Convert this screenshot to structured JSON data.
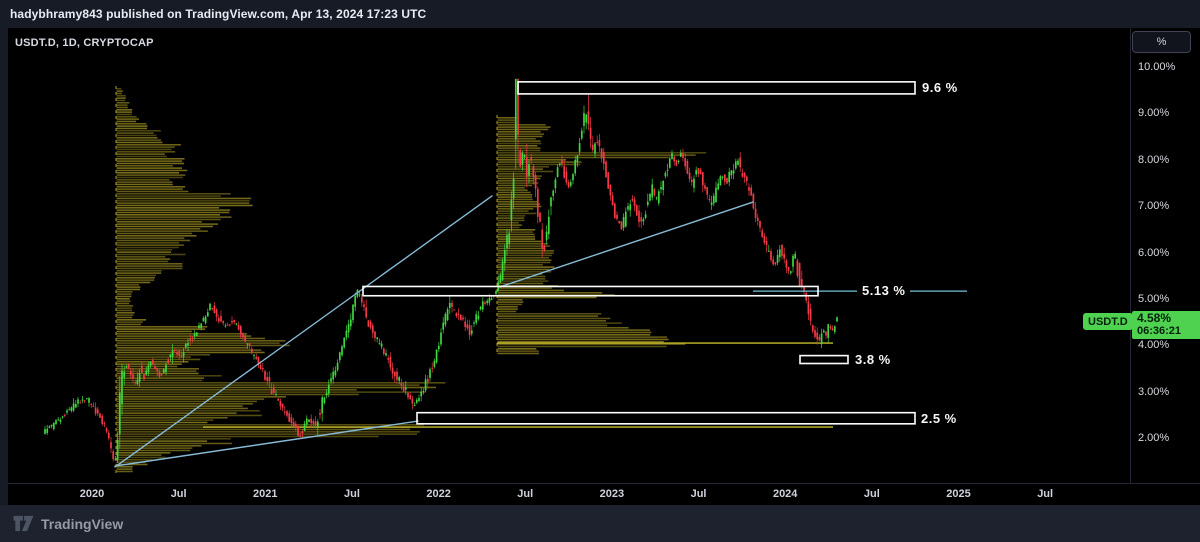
{
  "header": {
    "text": "hadybhramy843 published on TradingView.com, Apr 13, 2024 17:23 UTC"
  },
  "legend": {
    "symbol_line": "USDT.D, 1D, CRYPTOCAP"
  },
  "axis_button": {
    "label": "%"
  },
  "price_badge": {
    "symbol": "USDT.D",
    "value": "4.58%",
    "countdown": "06:36:21"
  },
  "footer": {
    "brand": "TradingView"
  },
  "colors": {
    "up": "#3fd63f",
    "down": "#f43a47",
    "profile": "#a89a24",
    "profile_line": "#c8bc2b",
    "trendline": "#87bad6",
    "ray_cyan": "#74c3da",
    "level_yellow": "#c8bc2b",
    "box_white": "#ffffff",
    "badge_green": "#4fd24f"
  },
  "chart_data": {
    "type": "candlestick",
    "title": "USDT.D, 1D, CRYPTOCAP",
    "symbol": "USDT.D",
    "interval": "1D",
    "exchange": "CRYPTOCAP",
    "unit": "%",
    "current_price": 4.58,
    "y_ticks": [
      "10.00%",
      "9.00%",
      "8.00%",
      "7.00%",
      "6.00%",
      "5.00%",
      "4.00%",
      "3.00%",
      "2.00%"
    ],
    "x_labels": [
      "2020",
      "Jul",
      "2021",
      "Jul",
      "2022",
      "Jul",
      "2023",
      "Jul",
      "2024",
      "Jul",
      "2025",
      "Jul"
    ],
    "ylim": [
      1.2,
      10.6
    ],
    "grid": false,
    "legend_position": "top-left",
    "price_path": [
      [
        37,
        2.1
      ],
      [
        47,
        2.3
      ],
      [
        57,
        2.5
      ],
      [
        67,
        2.7
      ],
      [
        80,
        2.85
      ],
      [
        87,
        2.7
      ],
      [
        94,
        2.45
      ],
      [
        100,
        2.2
      ],
      [
        105,
        1.8
      ],
      [
        109,
        1.45
      ],
      [
        112,
        2.2
      ],
      [
        115,
        3.2
      ],
      [
        119,
        3.6
      ],
      [
        124,
        3.4
      ],
      [
        129,
        3.1
      ],
      [
        134,
        3.5
      ],
      [
        139,
        3.3
      ],
      [
        144,
        3.7
      ],
      [
        150,
        3.5
      ],
      [
        155,
        3.3
      ],
      [
        160,
        3.6
      ],
      [
        167,
        3.9
      ],
      [
        174,
        3.7
      ],
      [
        182,
        4.1
      ],
      [
        190,
        4.3
      ],
      [
        197,
        4.5
      ],
      [
        205,
        4.85
      ],
      [
        212,
        4.6
      ],
      [
        220,
        4.4
      ],
      [
        227,
        4.55
      ],
      [
        234,
        4.3
      ],
      [
        242,
        4.0
      ],
      [
        250,
        3.7
      ],
      [
        257,
        3.4
      ],
      [
        264,
        3.1
      ],
      [
        272,
        2.8
      ],
      [
        280,
        2.5
      ],
      [
        287,
        2.3
      ],
      [
        294,
        2.1
      ],
      [
        302,
        2.4
      ],
      [
        310,
        2.3
      ],
      [
        317,
        2.8
      ],
      [
        324,
        3.2
      ],
      [
        332,
        3.7
      ],
      [
        340,
        4.2
      ],
      [
        347,
        4.8
      ],
      [
        352,
        5.15
      ],
      [
        357,
        4.9
      ],
      [
        362,
        4.5
      ],
      [
        369,
        4.2
      ],
      [
        377,
        3.9
      ],
      [
        384,
        3.6
      ],
      [
        392,
        3.3
      ],
      [
        400,
        3.0
      ],
      [
        407,
        2.7
      ],
      [
        414,
        2.9
      ],
      [
        422,
        3.3
      ],
      [
        430,
        3.8
      ],
      [
        437,
        4.4
      ],
      [
        444,
        4.9
      ],
      [
        450,
        4.7
      ],
      [
        457,
        4.5
      ],
      [
        464,
        4.3
      ],
      [
        470,
        4.6
      ],
      [
        477,
        4.9
      ],
      [
        484,
        5.0
      ],
      [
        489,
        5.1
      ],
      [
        494,
        5.4
      ],
      [
        499,
        6.0
      ],
      [
        504,
        6.6
      ],
      [
        507,
        7.3
      ],
      [
        510,
        9.45
      ],
      [
        512,
        8.2
      ],
      [
        515,
        7.9
      ],
      [
        518,
        8.3
      ],
      [
        521,
        7.7
      ],
      [
        524,
        8.1
      ],
      [
        528,
        7.6
      ],
      [
        532,
        6.9
      ],
      [
        535,
        6.4
      ],
      [
        538,
        6.0
      ],
      [
        542,
        6.7
      ],
      [
        546,
        7.3
      ],
      [
        550,
        7.7
      ],
      [
        554,
        8.0
      ],
      [
        558,
        7.7
      ],
      [
        562,
        7.4
      ],
      [
        567,
        7.7
      ],
      [
        572,
        8.2
      ],
      [
        576,
        8.6
      ],
      [
        580,
        9.1
      ],
      [
        583,
        8.7
      ],
      [
        587,
        8.2
      ],
      [
        591,
        8.5
      ],
      [
        596,
        8.1
      ],
      [
        601,
        7.6
      ],
      [
        606,
        7.1
      ],
      [
        611,
        6.7
      ],
      [
        616,
        6.5
      ],
      [
        621,
        6.9
      ],
      [
        626,
        7.2
      ],
      [
        631,
        6.9
      ],
      [
        636,
        6.6
      ],
      [
        641,
        7.0
      ],
      [
        646,
        7.4
      ],
      [
        651,
        7.1
      ],
      [
        656,
        7.5
      ],
      [
        661,
        7.8
      ],
      [
        666,
        8.1
      ],
      [
        671,
        7.9
      ],
      [
        676,
        8.2
      ],
      [
        681,
        7.8
      ],
      [
        686,
        7.5
      ],
      [
        691,
        7.8
      ],
      [
        696,
        7.6
      ],
      [
        701,
        7.2
      ],
      [
        706,
        7.0
      ],
      [
        711,
        7.4
      ],
      [
        716,
        7.7
      ],
      [
        721,
        7.5
      ],
      [
        726,
        7.8
      ],
      [
        731,
        8.0
      ],
      [
        736,
        7.7
      ],
      [
        741,
        7.5
      ],
      [
        745,
        7.3
      ],
      [
        749,
        6.9
      ],
      [
        754,
        6.5
      ],
      [
        759,
        6.2
      ],
      [
        764,
        5.9
      ],
      [
        769,
        5.7
      ],
      [
        774,
        6.1
      ],
      [
        779,
        5.8
      ],
      [
        784,
        5.5
      ],
      [
        789,
        6.0
      ],
      [
        792,
        5.6
      ],
      [
        795,
        5.2
      ],
      [
        799,
        5.1
      ],
      [
        802,
        4.8
      ],
      [
        805,
        4.5
      ],
      [
        808,
        4.3
      ],
      [
        811,
        4.15
      ],
      [
        814,
        4.05
      ],
      [
        817,
        4.4
      ],
      [
        820,
        4.2
      ],
      [
        823,
        4.5
      ],
      [
        826,
        4.3
      ],
      [
        830,
        4.58
      ]
    ],
    "wick_spikes": [
      [
        510,
        9.52
      ],
      [
        580,
        9.4
      ],
      [
        352,
        5.18
      ]
    ],
    "annotations": {
      "boxes": [
        {
          "label": "9.6 %",
          "price": 9.6,
          "x1": 510,
          "x2": 907,
          "p1": 9.68,
          "p2": 9.42
        },
        {
          "label": "5.13 %",
          "price": 5.13,
          "x1": 355,
          "x2": 810,
          "p1": 5.27,
          "p2": 5.07
        },
        {
          "label": "3.8 %",
          "price": 3.8,
          "x1": 792,
          "x2": 840,
          "p1": 3.78,
          "p2": 3.61
        },
        {
          "label": "2.5 %",
          "price": 2.5,
          "x1": 409,
          "x2": 907,
          "p1": 2.55,
          "p2": 2.31
        }
      ],
      "rays": [
        {
          "price": 5.17,
          "x1": 745,
          "x2": 959
        }
      ],
      "yellow_lines": [
        {
          "price": 4.05,
          "x1": 489,
          "x2": 825
        },
        {
          "price": 2.24,
          "x1": 195,
          "x2": 825
        }
      ],
      "trendlines": [
        {
          "from": [
            107,
            1.38
          ],
          "to": [
            484,
            7.22
          ]
        },
        {
          "from": [
            492,
            5.26
          ],
          "to": [
            745,
            7.09
          ]
        },
        {
          "from": [
            107,
            1.4
          ],
          "to": [
            410,
            2.37
          ]
        }
      ]
    },
    "volume_profiles": [
      {
        "anchor_x": 108,
        "y0": 60,
        "pitch": 7,
        "lengths": [
          6,
          10,
          13,
          18,
          24,
          32,
          44,
          50,
          66,
          57,
          70,
          68,
          66,
          57,
          73,
          130,
          139,
          118,
          124,
          100,
          88,
          80,
          74,
          66,
          58,
          66,
          48,
          38,
          26,
          17,
          14,
          16,
          19,
          30,
          88,
          150,
          172,
          158,
          90,
          70,
          80,
          104,
          320,
          295,
          170,
          150,
          142,
          110,
          316,
          305,
          112,
          90,
          55,
          35,
          16
        ]
      },
      {
        "anchor_x": 489,
        "y0": 89,
        "pitch": 7,
        "lengths": [
          20,
          56,
          50,
          46,
          44,
          200,
          80,
          56,
          46,
          42,
          33,
          37,
          43,
          37,
          27,
          25,
          43,
          47,
          53,
          57,
          63,
          55,
          53,
          57,
          67,
          112,
          25,
          23,
          110,
          135,
          155,
          165,
          188,
          42
        ]
      }
    ]
  }
}
